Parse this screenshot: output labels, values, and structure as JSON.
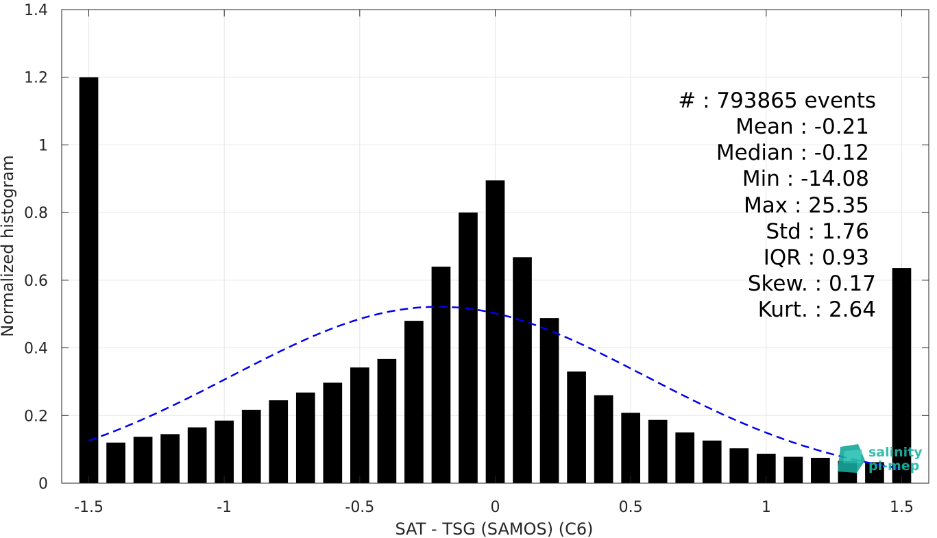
{
  "chart_data": {
    "type": "bar",
    "xlabel": "SAT - TSG (SAMOS) (C6)",
    "ylabel": "Normalized histogram",
    "xlim": [
      -1.6,
      1.6
    ],
    "ylim": [
      0,
      1.4
    ],
    "xticks": [
      -1.5,
      -1,
      -0.5,
      0,
      0.5,
      1,
      1.5
    ],
    "xtick_labels": [
      "-1.5",
      "-1",
      "-0.5",
      "0",
      "0.5",
      "1",
      "1.5"
    ],
    "yticks": [
      0,
      0.2,
      0.4,
      0.6,
      0.8,
      1,
      1.2,
      1.4
    ],
    "ytick_labels": [
      "0",
      "0.2",
      "0.4",
      "0.6",
      "0.8",
      "1",
      "1.2",
      "1.4"
    ],
    "grid": true,
    "bar_color": "#000000",
    "bar_width": 0.07,
    "x": [
      -1.5,
      -1.4,
      -1.3,
      -1.2,
      -1.1,
      -1.0,
      -0.9,
      -0.8,
      -0.7,
      -0.6,
      -0.5,
      -0.4,
      -0.3,
      -0.2,
      -0.1,
      0.0,
      0.1,
      0.2,
      0.3,
      0.4,
      0.5,
      0.6,
      0.7,
      0.8,
      0.9,
      1.0,
      1.1,
      1.2,
      1.3,
      1.4,
      1.5
    ],
    "values": [
      1.2,
      0.12,
      0.137,
      0.145,
      0.165,
      0.185,
      0.217,
      0.245,
      0.268,
      0.297,
      0.342,
      0.367,
      0.48,
      0.64,
      0.8,
      0.895,
      0.668,
      0.488,
      0.33,
      0.26,
      0.208,
      0.187,
      0.15,
      0.126,
      0.103,
      0.087,
      0.078,
      0.075,
      0.066,
      0.062,
      0.636
    ],
    "fit_curve": {
      "style": "dashed",
      "color": "#0000ee",
      "mean": -0.21,
      "std": 0.765,
      "x_range": [
        -1.5,
        1.5
      ]
    },
    "stats": [
      "#  : 793865 events",
      "Mean : -0.21",
      "Median : -0.12",
      "Min : -14.08",
      "Max : 25.35",
      "Std : 1.76",
      "IQR : 0.93",
      "Skew. : 0.17",
      "Kurt. : 2.64"
    ]
  },
  "logo": {
    "line1": "salinity",
    "line2": "pi-mep",
    "color": "#1fb8a8"
  }
}
